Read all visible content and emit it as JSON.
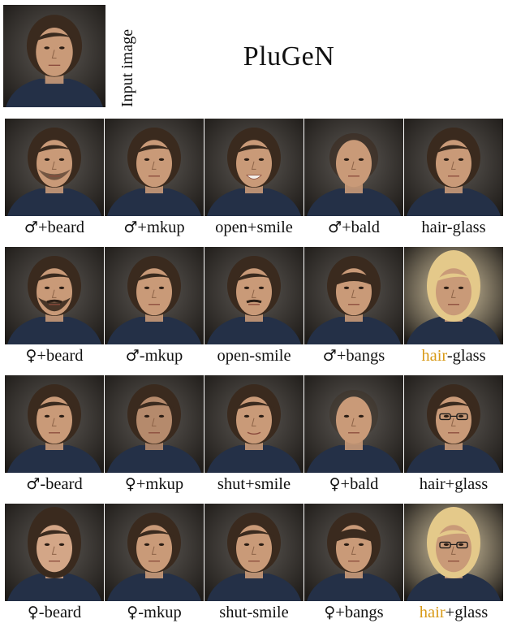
{
  "header": {
    "input_label": "Input image",
    "method_title": "PluGeN"
  },
  "grid": {
    "rows": [
      {
        "cells": [
          {
            "caption_pre": "",
            "caption_sym": "♂",
            "caption_accent": "",
            "caption_post": "+beard",
            "variant": "beard-short"
          },
          {
            "caption_pre": "",
            "caption_sym": "♂",
            "caption_accent": "",
            "caption_post": "+mkup",
            "variant": "base"
          },
          {
            "caption_pre": "open+smile",
            "caption_sym": "",
            "caption_accent": "",
            "caption_post": "",
            "variant": "smile"
          },
          {
            "caption_pre": "",
            "caption_sym": "♂",
            "caption_accent": "",
            "caption_post": "+bald",
            "variant": "bald-light"
          },
          {
            "caption_pre": "hair-glass",
            "caption_sym": "",
            "caption_accent": "",
            "caption_post": "",
            "variant": "dark-hair"
          }
        ]
      },
      {
        "cells": [
          {
            "caption_pre": "",
            "caption_sym": "♀",
            "caption_accent": "",
            "caption_post": "+beard",
            "variant": "beard-full"
          },
          {
            "caption_pre": "",
            "caption_sym": "♂",
            "caption_accent": "",
            "caption_post": "-mkup",
            "variant": "base"
          },
          {
            "caption_pre": "open-smile",
            "caption_sym": "",
            "caption_accent": "",
            "caption_post": "",
            "variant": "mustache"
          },
          {
            "caption_pre": "",
            "caption_sym": "♂",
            "caption_accent": "",
            "caption_post": "+bangs",
            "variant": "bangs"
          },
          {
            "caption_pre": "",
            "caption_sym": "",
            "caption_accent": "hair",
            "caption_post": "-glass",
            "variant": "blonde"
          }
        ]
      },
      {
        "cells": [
          {
            "caption_pre": "",
            "caption_sym": "♂",
            "caption_accent": "",
            "caption_post": "-beard",
            "variant": "clean"
          },
          {
            "caption_pre": "",
            "caption_sym": "♀",
            "caption_accent": "",
            "caption_post": "+mkup",
            "variant": "makeup"
          },
          {
            "caption_pre": "shut+smile",
            "caption_sym": "",
            "caption_accent": "",
            "caption_post": "",
            "variant": "soft-smile"
          },
          {
            "caption_pre": "",
            "caption_sym": "♀",
            "caption_accent": "",
            "caption_post": "+bald",
            "variant": "bald"
          },
          {
            "caption_pre": "hair+glass",
            "caption_sym": "",
            "caption_accent": "",
            "caption_post": "",
            "variant": "glasses-dark"
          }
        ]
      },
      {
        "cells": [
          {
            "caption_pre": "",
            "caption_sym": "♀",
            "caption_accent": "",
            "caption_post": "-beard",
            "variant": "female"
          },
          {
            "caption_pre": "",
            "caption_sym": "♀",
            "caption_accent": "",
            "caption_post": "-mkup",
            "variant": "base"
          },
          {
            "caption_pre": "shut-smile",
            "caption_sym": "",
            "caption_accent": "",
            "caption_post": "",
            "variant": "clean"
          },
          {
            "caption_pre": "",
            "caption_sym": "♀",
            "caption_accent": "",
            "caption_post": "+bangs",
            "variant": "bangs-female"
          },
          {
            "caption_pre": "",
            "caption_sym": "",
            "caption_accent": "hair",
            "caption_post": "+glass",
            "variant": "blonde-glasses"
          }
        ]
      }
    ]
  },
  "colors": {
    "accent_caption": "#d89a17",
    "background_dark": "#3f3a35",
    "skin": "#c99a78",
    "hair_dark": "#3a2a1e",
    "hair_blonde": "#e4c98a",
    "shirt": "#243047"
  }
}
